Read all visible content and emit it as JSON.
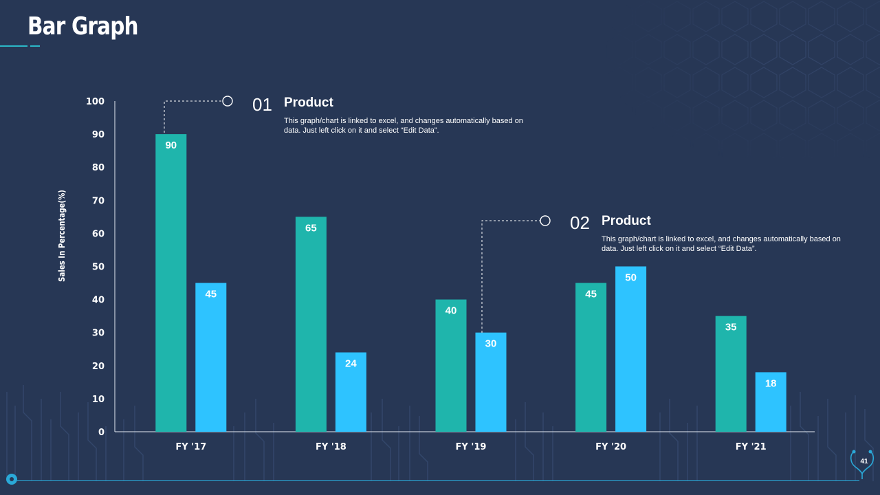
{
  "slide": {
    "title": "Bar Graph",
    "page_number": "41"
  },
  "colors": {
    "background": "#273755",
    "series_1": "#1fb5ac",
    "series_2": "#2ec3ff",
    "accent": "#2aa9d8"
  },
  "callouts": [
    {
      "number": "01",
      "heading": "Product",
      "text": "This graph/chart is linked to excel, and changes automatically based on data. Just left click on it and select “Edit Data”."
    },
    {
      "number": "02",
      "heading": "Product",
      "text": "This graph/chart is linked to excel, and changes automatically based on data. Just left click on it and select “Edit Data”."
    }
  ],
  "chart_data": {
    "type": "bar",
    "title": "",
    "xlabel": "",
    "ylabel": "Sales In Percentage(%)",
    "categories": [
      "FY '17",
      "FY '18",
      "FY '19",
      "FY '20",
      "FY '21"
    ],
    "series": [
      {
        "name": "Product 01",
        "values": [
          90,
          65,
          40,
          45,
          35
        ]
      },
      {
        "name": "Product 02",
        "values": [
          45,
          24,
          30,
          50,
          18
        ]
      }
    ],
    "ylim": [
      0,
      100
    ],
    "yticks": [
      0,
      10,
      20,
      30,
      40,
      50,
      60,
      70,
      80,
      90,
      100
    ],
    "grid": false,
    "legend": "none"
  }
}
